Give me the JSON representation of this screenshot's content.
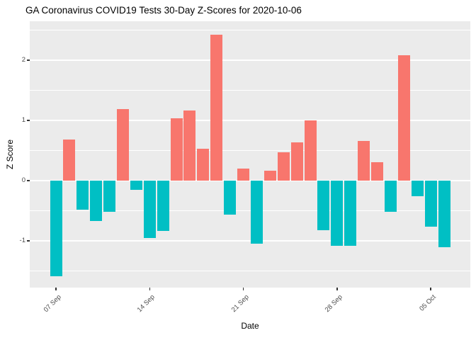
{
  "title": "GA Coronavirus COVID19 Tests 30-Day Z-Scores for 2020-10-06",
  "chart_data": {
    "type": "bar",
    "title": "GA Coronavirus COVID19 Tests 30-Day Z-Scores for 2020-10-06",
    "xlabel": "Date",
    "ylabel": "Z Score",
    "legend": "none",
    "grid": "on",
    "x": [
      "2020-09-07",
      "2020-09-08",
      "2020-09-09",
      "2020-09-10",
      "2020-09-11",
      "2020-09-12",
      "2020-09-13",
      "2020-09-14",
      "2020-09-15",
      "2020-09-16",
      "2020-09-17",
      "2020-09-18",
      "2020-09-19",
      "2020-09-20",
      "2020-09-21",
      "2020-09-22",
      "2020-09-23",
      "2020-09-24",
      "2020-09-25",
      "2020-09-26",
      "2020-09-27",
      "2020-09-28",
      "2020-09-29",
      "2020-09-30",
      "2020-10-01",
      "2020-10-02",
      "2020-10-03",
      "2020-10-04",
      "2020-10-05",
      "2020-10-06"
    ],
    "values": [
      -1.59,
      0.68,
      -0.48,
      -0.67,
      -0.52,
      1.19,
      -0.16,
      -0.96,
      -0.84,
      1.03,
      1.16,
      0.53,
      2.43,
      -0.57,
      0.2,
      -1.05,
      0.16,
      0.47,
      0.64,
      1.0,
      -0.82,
      -1.09,
      -1.08,
      0.66,
      0.3,
      -0.52,
      2.09,
      -0.26,
      -0.77,
      -1.11
    ],
    "x_ticks": [
      {
        "index": 0,
        "label": "07 Sep"
      },
      {
        "index": 7,
        "label": "14 Sep"
      },
      {
        "index": 14,
        "label": "21 Sep"
      },
      {
        "index": 21,
        "label": "28 Sep"
      },
      {
        "index": 28,
        "label": "05 Oct"
      }
    ],
    "y_ticks": [
      -1,
      0,
      1,
      2
    ],
    "y_minor_ticks": [
      -1.5,
      -0.5,
      0.5,
      1.5,
      2.5
    ],
    "ylim": [
      -1.78,
      2.65
    ],
    "colors": {
      "positive_bar": "#F8766D",
      "negative_bar": "#00BFC4",
      "panel_bg": "#EBEBEB",
      "gridline": "#FFFFFF",
      "tick_label": "#4D4D4D",
      "tick_mark": "#333333",
      "text": "#000000"
    }
  }
}
